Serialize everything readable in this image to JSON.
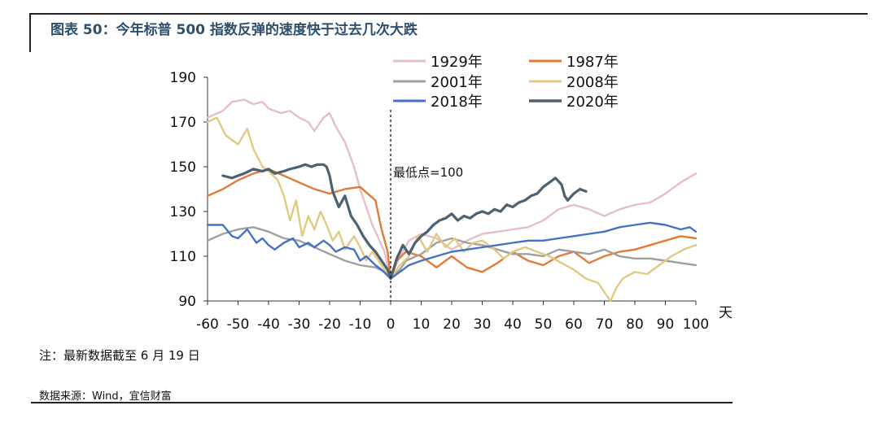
{
  "title": "图表 50：今年标普 500 指数反弹的速度快于过去几次大跌",
  "note": "注：最新数据截至 6 月 19 日",
  "source": "数据来源：Wind，宜信财富",
  "chart_data": {
    "type": "line",
    "title": "",
    "xlabel": "天",
    "ylabel": "",
    "xlim": [
      -60,
      100
    ],
    "ylim": [
      90,
      190
    ],
    "xticks": [
      -60,
      -50,
      -40,
      -30,
      -20,
      -10,
      0,
      10,
      20,
      30,
      40,
      50,
      60,
      70,
      80,
      90,
      100
    ],
    "yticks": [
      90,
      110,
      130,
      150,
      170,
      190
    ],
    "legend_position": "top",
    "annotation": {
      "text": "最低点=100",
      "x": 0
    },
    "series": [
      {
        "name": "1929年",
        "color": "#e6bfc4",
        "points": [
          [
            -60,
            172
          ],
          [
            -55,
            175
          ],
          [
            -52,
            179
          ],
          [
            -48,
            180
          ],
          [
            -45,
            178
          ],
          [
            -42,
            179
          ],
          [
            -40,
            176
          ],
          [
            -36,
            174
          ],
          [
            -33,
            175
          ],
          [
            -30,
            172
          ],
          [
            -27,
            170
          ],
          [
            -25,
            166
          ],
          [
            -22,
            172
          ],
          [
            -20,
            174
          ],
          [
            -18,
            168
          ],
          [
            -15,
            161
          ],
          [
            -12,
            150
          ],
          [
            -10,
            140
          ],
          [
            -8,
            132
          ],
          [
            -6,
            124
          ],
          [
            -4,
            118
          ],
          [
            -2,
            112
          ],
          [
            0,
            100
          ],
          [
            3,
            110
          ],
          [
            6,
            117
          ],
          [
            10,
            120
          ],
          [
            15,
            118
          ],
          [
            20,
            113
          ],
          [
            25,
            117
          ],
          [
            30,
            120
          ],
          [
            35,
            121
          ],
          [
            40,
            122
          ],
          [
            45,
            123
          ],
          [
            50,
            126
          ],
          [
            55,
            131
          ],
          [
            60,
            133
          ],
          [
            65,
            131
          ],
          [
            70,
            128
          ],
          [
            75,
            131
          ],
          [
            80,
            133
          ],
          [
            85,
            134
          ],
          [
            90,
            138
          ],
          [
            95,
            143
          ],
          [
            100,
            147
          ]
        ]
      },
      {
        "name": "1987年",
        "color": "#e07b3a",
        "points": [
          [
            -60,
            137
          ],
          [
            -55,
            140
          ],
          [
            -50,
            144
          ],
          [
            -45,
            147
          ],
          [
            -40,
            149
          ],
          [
            -35,
            146
          ],
          [
            -30,
            143
          ],
          [
            -25,
            140
          ],
          [
            -20,
            138
          ],
          [
            -15,
            140
          ],
          [
            -10,
            141
          ],
          [
            -5,
            135
          ],
          [
            -3,
            122
          ],
          [
            -1,
            112
          ],
          [
            0,
            100
          ],
          [
            2,
            108
          ],
          [
            5,
            112
          ],
          [
            10,
            110
          ],
          [
            15,
            105
          ],
          [
            20,
            110
          ],
          [
            25,
            105
          ],
          [
            30,
            103
          ],
          [
            35,
            107
          ],
          [
            40,
            112
          ],
          [
            45,
            108
          ],
          [
            50,
            106
          ],
          [
            55,
            110
          ],
          [
            60,
            112
          ],
          [
            65,
            107
          ],
          [
            70,
            110
          ],
          [
            75,
            112
          ],
          [
            80,
            113
          ],
          [
            85,
            115
          ],
          [
            90,
            117
          ],
          [
            95,
            119
          ],
          [
            100,
            118
          ]
        ]
      },
      {
        "name": "2001年",
        "color": "#a0a0a0",
        "points": [
          [
            -60,
            117
          ],
          [
            -55,
            120
          ],
          [
            -50,
            122
          ],
          [
            -45,
            123
          ],
          [
            -40,
            121
          ],
          [
            -35,
            118
          ],
          [
            -30,
            117
          ],
          [
            -25,
            114
          ],
          [
            -20,
            111
          ],
          [
            -15,
            108
          ],
          [
            -10,
            106
          ],
          [
            -5,
            105
          ],
          [
            -2,
            103
          ],
          [
            0,
            100
          ],
          [
            3,
            104
          ],
          [
            5,
            108
          ],
          [
            10,
            111
          ],
          [
            15,
            116
          ],
          [
            20,
            118
          ],
          [
            25,
            116
          ],
          [
            30,
            115
          ],
          [
            35,
            113
          ],
          [
            40,
            111
          ],
          [
            45,
            111
          ],
          [
            50,
            110
          ],
          [
            55,
            113
          ],
          [
            60,
            112
          ],
          [
            65,
            111
          ],
          [
            70,
            113
          ],
          [
            75,
            110
          ],
          [
            80,
            109
          ],
          [
            85,
            109
          ],
          [
            90,
            108
          ],
          [
            95,
            107
          ],
          [
            100,
            106
          ]
        ]
      },
      {
        "name": "2008年",
        "color": "#e2c983",
        "points": [
          [
            -60,
            170
          ],
          [
            -57,
            172
          ],
          [
            -54,
            164
          ],
          [
            -50,
            160
          ],
          [
            -47,
            167
          ],
          [
            -45,
            158
          ],
          [
            -42,
            150
          ],
          [
            -40,
            148
          ],
          [
            -37,
            144
          ],
          [
            -35,
            137
          ],
          [
            -33,
            126
          ],
          [
            -31,
            135
          ],
          [
            -29,
            119
          ],
          [
            -27,
            128
          ],
          [
            -25,
            122
          ],
          [
            -23,
            130
          ],
          [
            -21,
            124
          ],
          [
            -19,
            117
          ],
          [
            -17,
            121
          ],
          [
            -15,
            113
          ],
          [
            -12,
            119
          ],
          [
            -10,
            114
          ],
          [
            -8,
            108
          ],
          [
            -6,
            112
          ],
          [
            -3,
            106
          ],
          [
            0,
            100
          ],
          [
            3,
            106
          ],
          [
            6,
            110
          ],
          [
            9,
            119
          ],
          [
            12,
            112
          ],
          [
            15,
            120
          ],
          [
            18,
            114
          ],
          [
            21,
            118
          ],
          [
            24,
            112
          ],
          [
            27,
            116
          ],
          [
            30,
            117
          ],
          [
            34,
            113
          ],
          [
            37,
            109
          ],
          [
            40,
            112
          ],
          [
            44,
            114
          ],
          [
            48,
            112
          ],
          [
            52,
            110
          ],
          [
            56,
            107
          ],
          [
            60,
            104
          ],
          [
            64,
            100
          ],
          [
            68,
            98
          ],
          [
            70,
            94
          ],
          [
            72,
            90
          ],
          [
            74,
            96
          ],
          [
            76,
            100
          ],
          [
            80,
            103
          ],
          [
            84,
            102
          ],
          [
            88,
            106
          ],
          [
            92,
            110
          ],
          [
            96,
            113
          ],
          [
            100,
            115
          ]
        ]
      },
      {
        "name": "2018年",
        "color": "#4572c4",
        "points": [
          [
            -60,
            124
          ],
          [
            -55,
            124
          ],
          [
            -52,
            119
          ],
          [
            -50,
            118
          ],
          [
            -47,
            122
          ],
          [
            -44,
            116
          ],
          [
            -42,
            118
          ],
          [
            -40,
            115
          ],
          [
            -38,
            113
          ],
          [
            -35,
            116
          ],
          [
            -32,
            118
          ],
          [
            -30,
            114
          ],
          [
            -27,
            116
          ],
          [
            -25,
            114
          ],
          [
            -22,
            117
          ],
          [
            -20,
            115
          ],
          [
            -18,
            112
          ],
          [
            -15,
            114
          ],
          [
            -12,
            113
          ],
          [
            -10,
            108
          ],
          [
            -8,
            110
          ],
          [
            -5,
            106
          ],
          [
            -3,
            104
          ],
          [
            0,
            100
          ],
          [
            3,
            103
          ],
          [
            6,
            106
          ],
          [
            10,
            108
          ],
          [
            15,
            110
          ],
          [
            20,
            112
          ],
          [
            25,
            113
          ],
          [
            30,
            114
          ],
          [
            35,
            115
          ],
          [
            40,
            116
          ],
          [
            45,
            117
          ],
          [
            50,
            117
          ],
          [
            55,
            118
          ],
          [
            60,
            119
          ],
          [
            65,
            120
          ],
          [
            70,
            121
          ],
          [
            75,
            123
          ],
          [
            80,
            124
          ],
          [
            85,
            125
          ],
          [
            90,
            124
          ],
          [
            95,
            122
          ],
          [
            98,
            123
          ],
          [
            100,
            121
          ]
        ]
      },
      {
        "name": "2020年",
        "color": "#4c6171",
        "points": [
          [
            -55,
            146
          ],
          [
            -52,
            145
          ],
          [
            -50,
            146
          ],
          [
            -48,
            147
          ],
          [
            -45,
            149
          ],
          [
            -42,
            148
          ],
          [
            -40,
            149
          ],
          [
            -38,
            147
          ],
          [
            -35,
            148
          ],
          [
            -33,
            149
          ],
          [
            -30,
            150
          ],
          [
            -28,
            151
          ],
          [
            -26,
            150
          ],
          [
            -24,
            151
          ],
          [
            -22,
            151
          ],
          [
            -21,
            150
          ],
          [
            -20,
            146
          ],
          [
            -19,
            139
          ],
          [
            -17,
            132
          ],
          [
            -15,
            137
          ],
          [
            -13,
            128
          ],
          [
            -11,
            124
          ],
          [
            -9,
            119
          ],
          [
            -7,
            115
          ],
          [
            -5,
            112
          ],
          [
            -3,
            108
          ],
          [
            -1,
            104
          ],
          [
            0,
            100
          ],
          [
            2,
            109
          ],
          [
            4,
            115
          ],
          [
            6,
            111
          ],
          [
            8,
            116
          ],
          [
            10,
            119
          ],
          [
            12,
            121
          ],
          [
            14,
            124
          ],
          [
            16,
            126
          ],
          [
            18,
            127
          ],
          [
            20,
            129
          ],
          [
            22,
            126
          ],
          [
            24,
            128
          ],
          [
            26,
            127
          ],
          [
            28,
            129
          ],
          [
            30,
            130
          ],
          [
            32,
            129
          ],
          [
            34,
            131
          ],
          [
            36,
            130
          ],
          [
            38,
            133
          ],
          [
            40,
            132
          ],
          [
            42,
            134
          ],
          [
            44,
            135
          ],
          [
            46,
            137
          ],
          [
            48,
            138
          ],
          [
            50,
            141
          ],
          [
            52,
            143
          ],
          [
            54,
            145
          ],
          [
            56,
            142
          ],
          [
            57,
            137
          ],
          [
            58,
            135
          ],
          [
            60,
            138
          ],
          [
            62,
            140
          ],
          [
            64,
            139
          ]
        ]
      }
    ]
  }
}
